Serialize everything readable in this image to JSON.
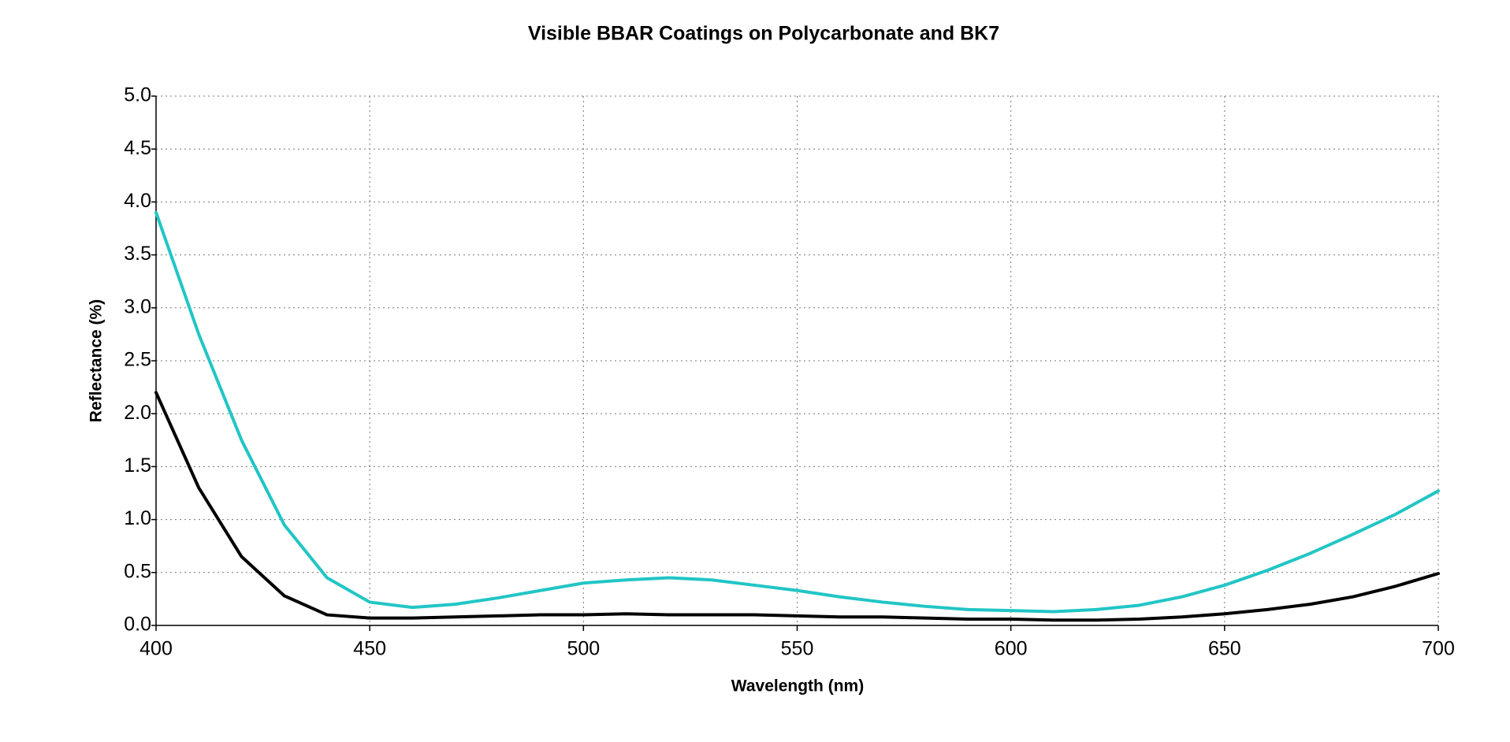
{
  "chart_data": {
    "type": "line",
    "title": "Visible BBAR Coatings on Polycarbonate and BK7",
    "x_label": "Wavelength (nm)",
    "y_label": "Reflectance (%)",
    "x": [
      400,
      410,
      420,
      430,
      440,
      450,
      460,
      470,
      480,
      490,
      500,
      510,
      520,
      530,
      540,
      550,
      560,
      570,
      580,
      590,
      600,
      610,
      620,
      630,
      640,
      650,
      660,
      670,
      680,
      690,
      700
    ],
    "series": [
      {
        "color": "#22c5c5",
        "values": [
          3.9,
          2.75,
          1.75,
          0.95,
          0.45,
          0.22,
          0.17,
          0.2,
          0.26,
          0.33,
          0.4,
          0.43,
          0.45,
          0.43,
          0.38,
          0.33,
          0.27,
          0.22,
          0.18,
          0.15,
          0.14,
          0.13,
          0.15,
          0.19,
          0.27,
          0.38,
          0.52,
          0.68,
          0.86,
          1.05,
          1.27
        ]
      },
      {
        "color": "#000000",
        "values": [
          2.2,
          1.3,
          0.65,
          0.28,
          0.1,
          0.07,
          0.07,
          0.08,
          0.09,
          0.1,
          0.1,
          0.11,
          0.1,
          0.1,
          0.1,
          0.09,
          0.08,
          0.08,
          0.07,
          0.06,
          0.06,
          0.05,
          0.05,
          0.06,
          0.08,
          0.11,
          0.15,
          0.2,
          0.27,
          0.37,
          0.49
        ]
      }
    ],
    "xlim": [
      400,
      700
    ],
    "xticks": [
      400,
      450,
      500,
      550,
      600,
      650,
      700
    ],
    "ylim": [
      0,
      5
    ],
    "yticks": [
      {
        "value": 0,
        "label": "0.0"
      },
      0.5,
      {
        "value": 1,
        "label": "1.0"
      },
      1.5,
      {
        "value": 2,
        "label": "2.0"
      },
      2.5,
      {
        "value": 3,
        "label": "3.0"
      },
      3.5,
      {
        "value": 4,
        "label": "4.0"
      },
      4.5,
      {
        "value": 5,
        "label": "5.0"
      }
    ],
    "grid": true
  }
}
